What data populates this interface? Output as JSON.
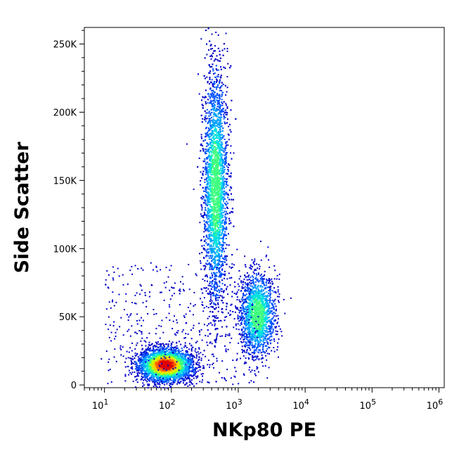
{
  "chart_data": {
    "type": "scatter",
    "style": "density-dot-plot",
    "title": "",
    "xlabel": "NKp80 PE",
    "ylabel": "Side Scatter",
    "x_scale": "log",
    "xlim": [
      5,
      1200000
    ],
    "ylim": [
      -2000,
      262144
    ],
    "x_ticks": [
      {
        "value": 10,
        "base": "10",
        "exp": "1"
      },
      {
        "value": 100,
        "base": "10",
        "exp": "2"
      },
      {
        "value": 1000,
        "base": "10",
        "exp": "3"
      },
      {
        "value": 10000,
        "base": "10",
        "exp": "4"
      },
      {
        "value": 100000,
        "base": "10",
        "exp": "5"
      },
      {
        "value": 1000000,
        "base": "10",
        "exp": "6"
      }
    ],
    "y_ticks": [
      {
        "value": 0,
        "label": "0"
      },
      {
        "value": 50000,
        "label": "50K"
      },
      {
        "value": 100000,
        "label": "100K"
      },
      {
        "value": 150000,
        "label": "150K"
      },
      {
        "value": 200000,
        "label": "200K"
      },
      {
        "value": 250000,
        "label": "250K"
      }
    ],
    "density_colors": [
      "#0000c8",
      "#0050ff",
      "#00a0ff",
      "#00e0e0",
      "#40ff80",
      "#c0ff00",
      "#ffd000",
      "#ff6000",
      "#e00000"
    ],
    "populations": [
      {
        "x_center": 450,
        "x_spread_log10": 0.09,
        "y_center": 145000,
        "y_spread": 42000,
        "count": 4200,
        "peak_level": 4
      },
      {
        "x_center": 1900,
        "x_spread_log10": 0.13,
        "y_center": 52000,
        "y_spread": 15000,
        "count": 1700,
        "peak_level": 4
      },
      {
        "x_center": 80,
        "x_spread_log10": 0.2,
        "y_center": 15000,
        "y_spread": 6000,
        "count": 3000,
        "peak_level": 8
      }
    ]
  }
}
